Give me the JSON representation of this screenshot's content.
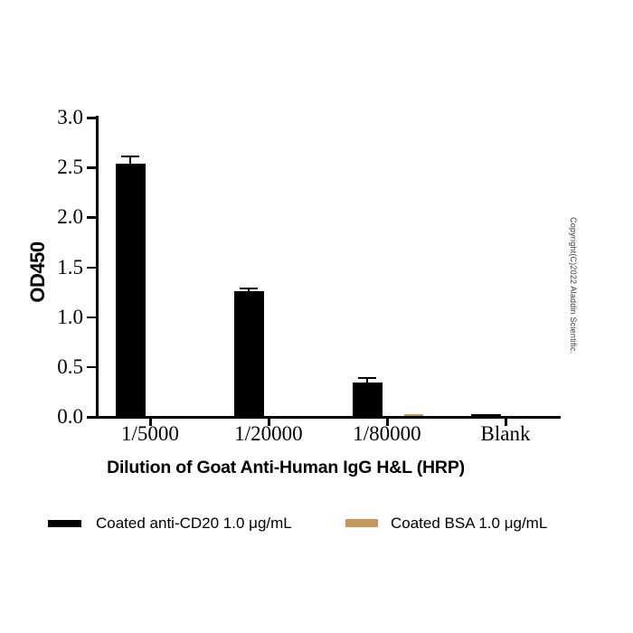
{
  "copyright": "Copyright(C)2022 Aladdin Scientific.",
  "chart_data": {
    "type": "bar",
    "title": "",
    "xlabel": "Dilution of Goat Anti-Human IgG H&L (HRP)",
    "ylabel": "OD450",
    "categories": [
      "1/5000",
      "1/20000",
      "1/80000",
      "Blank"
    ],
    "series": [
      {
        "name": "Coated anti-CD20 1.0 μg/mL",
        "color": "#000000",
        "values": [
          2.54,
          1.26,
          0.34,
          0.03
        ],
        "sd": [
          0.08,
          0.04,
          0.06,
          0
        ]
      },
      {
        "name": "Coated BSA 1.0 μg/mL",
        "color": "#C59A58",
        "values": [
          0.01,
          0.01,
          0.025,
          0.01
        ],
        "sd": [
          0,
          0,
          0,
          0
        ]
      }
    ],
    "ylim": [
      0.0,
      3.0
    ],
    "ytick_step": 0.5,
    "yticks": [
      "0.0",
      "0.5",
      "1.0",
      "1.5",
      "2.0",
      "2.5",
      "3.0"
    ],
    "grid": false,
    "error_bars": "sd, upper only",
    "legend_position": "bottom"
  },
  "legend": {
    "items": [
      {
        "label": "Coated anti-CD20 1.0 μg/mL",
        "color": "#000000"
      },
      {
        "label": "Coated BSA 1.0 μg/mL",
        "color": "#C59A58"
      }
    ]
  }
}
